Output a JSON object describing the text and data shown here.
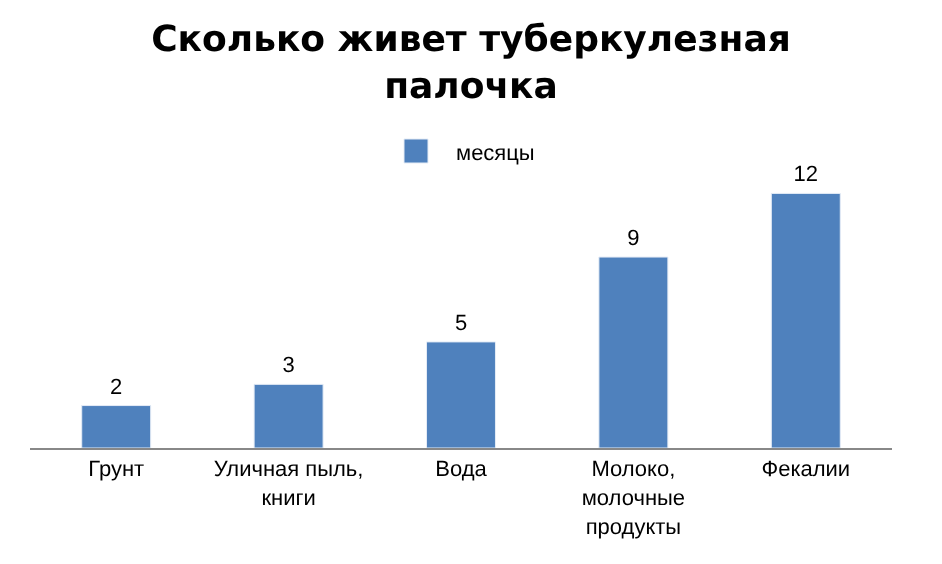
{
  "chart_data": {
    "type": "bar",
    "title": "Сколько живет туберкулезная палочка",
    "categories": [
      "Грунт",
      "Уличная пыль, книги",
      "Вода",
      "Молоко, молочные продукты",
      "Фекалии"
    ],
    "series": [
      {
        "name": "месяцы",
        "color": "#4f81bd",
        "values": [
          2,
          3,
          5,
          9,
          12
        ]
      }
    ],
    "data_labels": true,
    "legend": "top"
  }
}
